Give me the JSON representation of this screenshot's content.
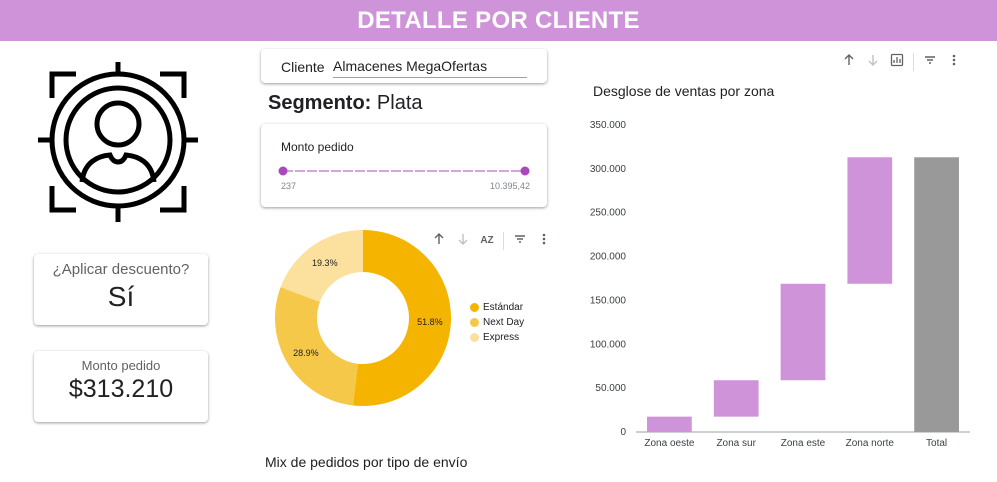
{
  "header": {
    "title": "DETALLE POR CLIENTE",
    "bg_color": "#ce93d8"
  },
  "discount_card": {
    "label": "¿Aplicar descuento?",
    "value": "Sí"
  },
  "amount_card": {
    "label": "Monto pedido",
    "value": "$313.210"
  },
  "client_filter": {
    "label": "Cliente",
    "value": "Almacenes MegaOfertas"
  },
  "segment": {
    "label": "Segmento:",
    "value": "Plata"
  },
  "slider": {
    "label": "Monto pedido",
    "min_label": "237",
    "max_label": "10.395,42",
    "color": "#ab47bc"
  },
  "donut": {
    "title": "Mix de pedidos por tipo de envío",
    "toolbar_icons": [
      "arrow-up-icon",
      "arrow-down-icon",
      "sort-az-icon",
      "filter-icon",
      "more-icon"
    ],
    "sort_label": "AZ"
  },
  "waterfall": {
    "title": "Desglose de ventas por zona",
    "toolbar_icons": [
      "arrow-up-icon",
      "arrow-down-icon",
      "chart-icon",
      "filter-icon",
      "more-icon"
    ]
  },
  "chart_data": [
    {
      "type": "pie",
      "donut": true,
      "title": "Mix de pedidos por tipo de envío",
      "legend_position": "right",
      "slices": [
        {
          "name": "Estándar",
          "value": 51.8,
          "label": "51.8%",
          "color": "#f4b400"
        },
        {
          "name": "Next Day",
          "value": 28.9,
          "label": "28.9%",
          "color": "#f6c849"
        },
        {
          "name": "Express",
          "value": 19.3,
          "label": "19.3%",
          "color": "#fce19e"
        }
      ]
    },
    {
      "type": "bar",
      "subtype": "waterfall",
      "title": "Desglose de ventas por zona",
      "categories": [
        "Zona oeste",
        "Zona sur",
        "Zona este",
        "Zona norte",
        "Total"
      ],
      "steps": [
        {
          "start": 0,
          "end": 17500
        },
        {
          "start": 17500,
          "end": 59000
        },
        {
          "start": 59000,
          "end": 169000
        },
        {
          "start": 169000,
          "end": 313210
        },
        {
          "start": 0,
          "end": 313210,
          "total": true
        }
      ],
      "ylim": [
        0,
        350000
      ],
      "yticks": [
        0,
        50000,
        100000,
        150000,
        200000,
        250000,
        300000,
        350000
      ],
      "ytick_labels": [
        "0",
        "50.000",
        "100.000",
        "150.000",
        "200.000",
        "250.000",
        "300.000",
        "350.000"
      ],
      "grid": false,
      "colors": {
        "step": "#ce93d8",
        "total": "#999999"
      }
    }
  ]
}
